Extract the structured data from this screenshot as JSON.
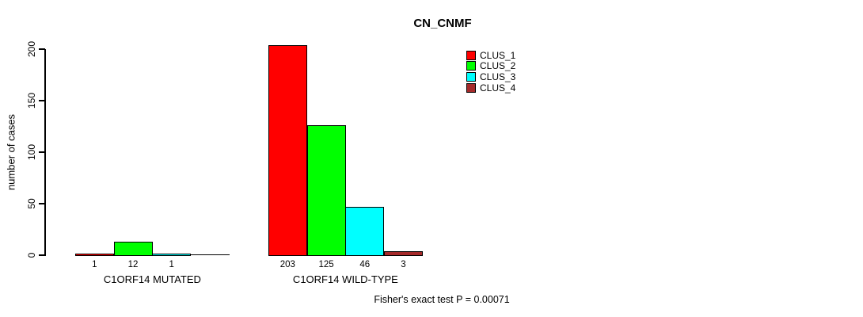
{
  "title": "CN_CNMF",
  "ylabel": "number of cases",
  "footer": "Fisher's exact test P = 0.00071",
  "legend": {
    "entries": [
      {
        "label": "CLUS_1",
        "color": "#FF0000"
      },
      {
        "label": "CLUS_2",
        "color": "#00FF00"
      },
      {
        "label": "CLUS_3",
        "color": "#00FFFF"
      },
      {
        "label": "CLUS_4",
        "color": "#A52A2A"
      }
    ]
  },
  "chart_data": {
    "type": "bar",
    "title": "CN_CNMF",
    "ylabel": "number of cases",
    "xlabel": "",
    "ylim": [
      0,
      200
    ],
    "yticks": [
      "0",
      "50",
      "100",
      "150",
      "200"
    ],
    "ytick_values": [
      0,
      50,
      100,
      150,
      200
    ],
    "grid": false,
    "legend_position": "top-right",
    "series_names": [
      "CLUS_1",
      "CLUS_2",
      "CLUS_3",
      "CLUS_4"
    ],
    "series_colors": [
      "#FF0000",
      "#00FF00",
      "#00FFFF",
      "#A52A2A"
    ],
    "groups": [
      {
        "label": "C1ORF14 MUTATED",
        "values": [
          1,
          12,
          1,
          0
        ],
        "value_labels": [
          "1",
          "12",
          "1",
          ""
        ]
      },
      {
        "label": "C1ORF14 WILD-TYPE",
        "values": [
          203,
          125,
          46,
          3
        ],
        "value_labels": [
          "203",
          "125",
          "46",
          "3"
        ]
      }
    ],
    "annotation": "Fisher's exact test P = 0.00071"
  }
}
